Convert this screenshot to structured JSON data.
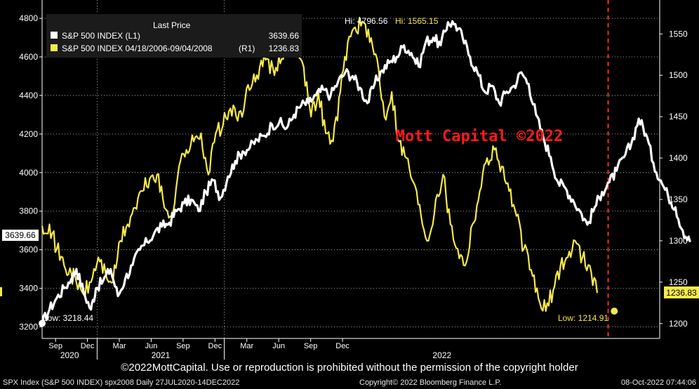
{
  "chart_data": {
    "type": "line",
    "title": "Last Price",
    "series": [
      {
        "name": "S&P 500 INDEX (L1)",
        "axis": "left",
        "color": "#ffffff",
        "last": "3639.66",
        "anchors": [
          [
            0,
            3218
          ],
          [
            3,
            3290
          ],
          [
            6,
            3350
          ],
          [
            9,
            3400
          ],
          [
            12,
            3450
          ],
          [
            14,
            3500
          ],
          [
            17,
            3380
          ],
          [
            20,
            3290
          ],
          [
            22,
            3400
          ],
          [
            25,
            3440
          ],
          [
            28,
            3500
          ],
          [
            31,
            3360
          ],
          [
            34,
            3450
          ],
          [
            37,
            3520
          ],
          [
            40,
            3600
          ],
          [
            43,
            3640
          ],
          [
            46,
            3690
          ],
          [
            49,
            3720
          ],
          [
            52,
            3740
          ],
          [
            55,
            3800
          ],
          [
            58,
            3840
          ],
          [
            61,
            3860
          ],
          [
            64,
            3800
          ],
          [
            67,
            3900
          ],
          [
            70,
            3960
          ],
          [
            73,
            3870
          ],
          [
            76,
            3980
          ],
          [
            79,
            4060
          ],
          [
            82,
            4110
          ],
          [
            85,
            4130
          ],
          [
            88,
            4170
          ],
          [
            91,
            4190
          ],
          [
            94,
            4250
          ],
          [
            97,
            4260
          ],
          [
            100,
            4230
          ],
          [
            103,
            4300
          ],
          [
            106,
            4350
          ],
          [
            109,
            4360
          ],
          [
            112,
            4400
          ],
          [
            115,
            4430
          ],
          [
            118,
            4400
          ],
          [
            121,
            4470
          ],
          [
            124,
            4520
          ],
          [
            127,
            4500
          ],
          [
            130,
            4440
          ],
          [
            133,
            4360
          ],
          [
            136,
            4460
          ],
          [
            139,
            4530
          ],
          [
            142,
            4570
          ],
          [
            145,
            4600
          ],
          [
            148,
            4660
          ],
          [
            151,
            4620
          ],
          [
            154,
            4550
          ],
          [
            157,
            4680
          ],
          [
            160,
            4700
          ],
          [
            163,
            4660
          ],
          [
            166,
            4780
          ],
          [
            169,
            4770
          ],
          [
            172,
            4700
          ],
          [
            175,
            4600
          ],
          [
            178,
            4520
          ],
          [
            181,
            4420
          ],
          [
            184,
            4450
          ],
          [
            187,
            4360
          ],
          [
            190,
            4420
          ],
          [
            193,
            4450
          ],
          [
            196,
            4520
          ],
          [
            199,
            4460
          ],
          [
            202,
            4300
          ],
          [
            205,
            4180
          ],
          [
            208,
            4080
          ],
          [
            211,
            3950
          ],
          [
            214,
            3920
          ],
          [
            217,
            3860
          ],
          [
            220,
            3800
          ],
          [
            223,
            3730
          ],
          [
            226,
            3820
          ],
          [
            229,
            3900
          ],
          [
            232,
            3950
          ],
          [
            235,
            4010
          ],
          [
            238,
            4080
          ],
          [
            241,
            4150
          ],
          [
            244,
            4280
          ],
          [
            247,
            4200
          ],
          [
            250,
            4050
          ],
          [
            253,
            3960
          ],
          [
            256,
            3880
          ],
          [
            259,
            3820
          ],
          [
            262,
            3700
          ],
          [
            265,
            3640
          ]
        ]
      },
      {
        "name": "S&P 500 INDEX 04/18/2006-09/04/2008",
        "axis": "right",
        "color": "#f6e94a",
        "last": "1236.83",
        "anchors": [
          [
            0,
            1318
          ],
          [
            3,
            1320
          ],
          [
            6,
            1290
          ],
          [
            9,
            1270
          ],
          [
            12,
            1260
          ],
          [
            14,
            1250
          ],
          [
            17,
            1235
          ],
          [
            20,
            1250
          ],
          [
            23,
            1280
          ],
          [
            26,
            1260
          ],
          [
            29,
            1250
          ],
          [
            32,
            1300
          ],
          [
            35,
            1320
          ],
          [
            38,
            1340
          ],
          [
            41,
            1360
          ],
          [
            44,
            1375
          ],
          [
            47,
            1380
          ],
          [
            50,
            1340
          ],
          [
            53,
            1330
          ],
          [
            56,
            1390
          ],
          [
            59,
            1410
          ],
          [
            62,
            1420
          ],
          [
            65,
            1430
          ],
          [
            68,
            1380
          ],
          [
            71,
            1430
          ],
          [
            74,
            1440
          ],
          [
            77,
            1460
          ],
          [
            80,
            1445
          ],
          [
            83,
            1470
          ],
          [
            86,
            1490
          ],
          [
            89,
            1510
          ],
          [
            92,
            1520
          ],
          [
            95,
            1500
          ],
          [
            98,
            1520
          ],
          [
            101,
            1540
          ],
          [
            104,
            1545
          ],
          [
            107,
            1510
          ],
          [
            110,
            1450
          ],
          [
            113,
            1480
          ],
          [
            116,
            1430
          ],
          [
            119,
            1420
          ],
          [
            122,
            1480
          ],
          [
            125,
            1540
          ],
          [
            128,
            1558
          ],
          [
            131,
            1565
          ],
          [
            134,
            1540
          ],
          [
            137,
            1520
          ],
          [
            140,
            1450
          ],
          [
            143,
            1480
          ],
          [
            146,
            1420
          ],
          [
            149,
            1400
          ],
          [
            152,
            1370
          ],
          [
            155,
            1330
          ],
          [
            158,
            1300
          ],
          [
            161,
            1350
          ],
          [
            164,
            1380
          ],
          [
            167,
            1320
          ],
          [
            170,
            1290
          ],
          [
            173,
            1270
          ],
          [
            176,
            1320
          ],
          [
            179,
            1360
          ],
          [
            182,
            1400
          ],
          [
            185,
            1410
          ],
          [
            188,
            1390
          ],
          [
            191,
            1360
          ],
          [
            194,
            1330
          ],
          [
            197,
            1290
          ],
          [
            200,
            1265
          ],
          [
            203,
            1230
          ],
          [
            206,
            1215
          ],
          [
            209,
            1240
          ],
          [
            212,
            1270
          ],
          [
            215,
            1280
          ],
          [
            218,
            1300
          ],
          [
            221,
            1280
          ],
          [
            224,
            1270
          ],
          [
            227,
            1237
          ]
        ]
      }
    ],
    "left_axis": {
      "min": 3140,
      "max": 4895,
      "ticks": [
        3200,
        3400,
        3600,
        3800,
        4000,
        4200,
        4400,
        4600,
        4800
      ]
    },
    "right_axis": {
      "min": 1182,
      "max": 1591,
      "ticks": [
        1200,
        1250,
        1300,
        1350,
        1400,
        1450,
        1500,
        1550
      ]
    },
    "x_axis": {
      "start": "27JUL2020",
      "end": "14DEC2022",
      "month_ticks": [
        "Sep",
        "Dec",
        "Mar",
        "Jun",
        "Sep",
        "Dec",
        "Mar",
        "Jun",
        "Sep",
        "Dec"
      ],
      "years": [
        "2020",
        "2021",
        "2022"
      ]
    },
    "annotations": {
      "hi_left": "Hi: 4796.56",
      "hi_right": "Hi: 1565.15",
      "low_left": "Low: 3218.44",
      "low_right": "Low: 1214.91",
      "left_last_tag": "3639.66",
      "right_last_tag": "1236.83",
      "watermark": "Mott Capital ©2022"
    },
    "legend": {
      "title": "Last Price",
      "position": "top-left"
    }
  },
  "legend": {
    "title": "Last Price",
    "row1_name": "S&P 500 INDEX  (L1)",
    "row1_value": "3639.66",
    "row2_name": "S&P 500 INDEX 04/18/2006-09/04/2008",
    "row2_axis": "(R1)",
    "row2_value": "1236.83"
  },
  "footer": {
    "copyright_notice": "©2022MottCapital. Use or reproduction is prohibited without the permission of the copyright holder",
    "left": "SPX Index (S&P 500 INDEX) spx2008  Daily 27JUL2020-14DEC2022",
    "mid": "Copyright© 2022 Bloomberg Finance L.P.",
    "right": "08-Oct-2022 07:44:06"
  }
}
